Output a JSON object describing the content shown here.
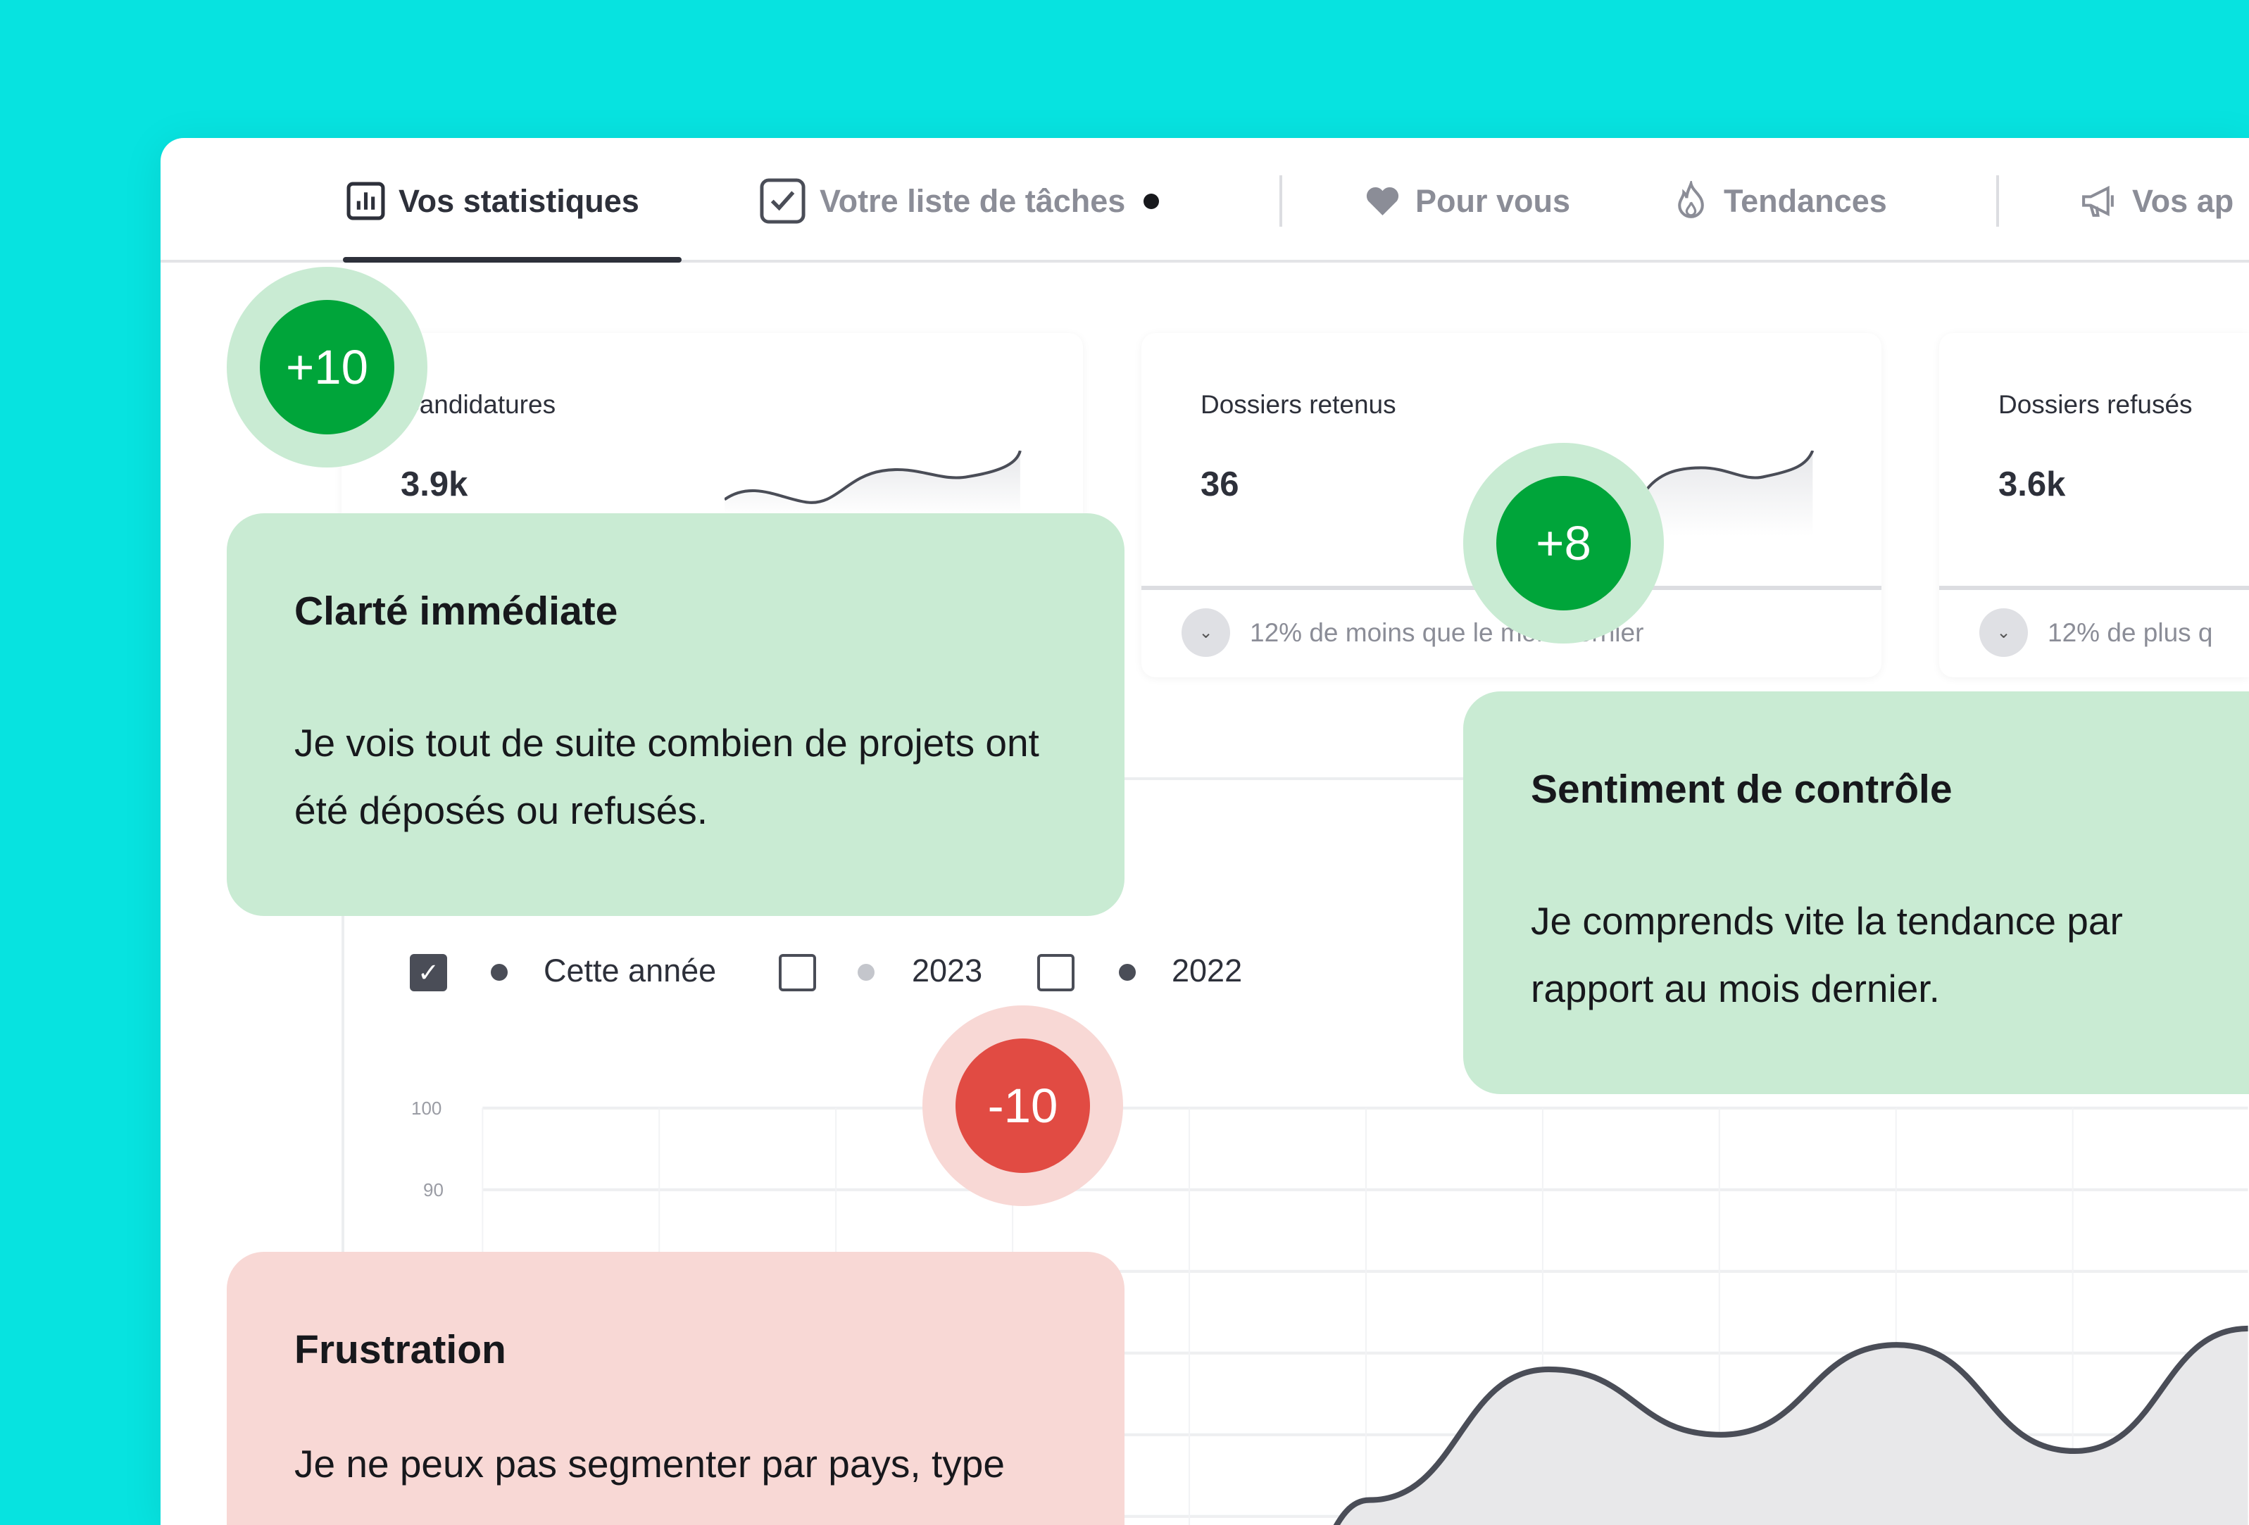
{
  "tabs": [
    {
      "label": "Vos statistiques",
      "icon": "bar-chart-icon",
      "active": true
    },
    {
      "label": "Votre liste de tâches",
      "icon": "checkbox-icon",
      "dot": true
    },
    {
      "label": "Pour vous",
      "icon": "heart-icon"
    },
    {
      "label": "Tendances",
      "icon": "flame-icon"
    },
    {
      "label": "Vos ap",
      "icon": "megaphone-icon"
    }
  ],
  "cards": [
    {
      "title": "Candidatures",
      "value": "3.9k"
    },
    {
      "title": "Dossiers retenus",
      "value": "36",
      "footer": "12% de moins que le mois dernier"
    },
    {
      "title": "Dossiers refusés",
      "value": "3.6k",
      "footer": "12% de plus q"
    }
  ],
  "notes": [
    {
      "title": "Clarté immédiate",
      "body": "Je vois tout de suite combien de projets ont été déposés ou refusés."
    },
    {
      "title": "Sentiment de contrôle",
      "body": "Je comprends vite la tendance par rapport au mois dernier."
    },
    {
      "title": "Frustration",
      "body": "Je ne peux pas segmenter par pays, type"
    }
  ],
  "badges": [
    "+10",
    "+8",
    "-10"
  ],
  "legend": [
    {
      "label": "Cette année",
      "checked": true,
      "color": "#4a4d57"
    },
    {
      "label": "2023",
      "checked": false,
      "color": "#c4c6cc"
    },
    {
      "label": "2022",
      "checked": false,
      "color": "#4a4d57"
    }
  ],
  "colors": {
    "background": "#07e3e0",
    "positive": "#00a53a",
    "negative": "#e14b43",
    "note_green": "#c9ebd3",
    "note_red": "#f8d8d5"
  },
  "chart_data": {
    "type": "area",
    "y_ticks": [
      "100",
      "90"
    ],
    "series": [
      {
        "name": "Cette année",
        "values": [
          43,
          52,
          68,
          60,
          71,
          58,
          73
        ]
      }
    ],
    "ylim": [
      40,
      100
    ]
  }
}
